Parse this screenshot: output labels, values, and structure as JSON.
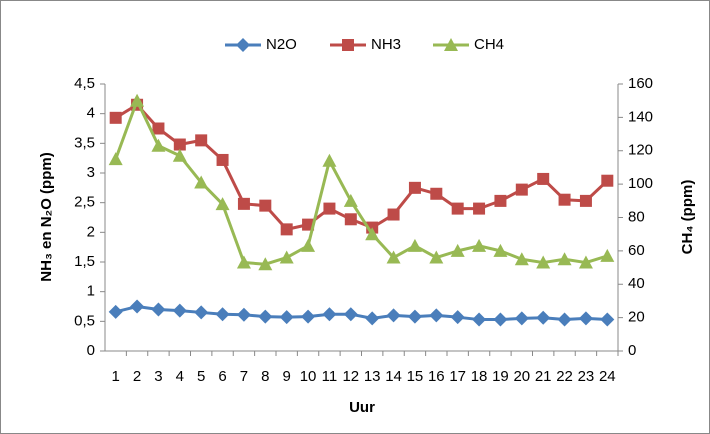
{
  "chart_data": {
    "type": "line",
    "x_label": "Uur",
    "y_label": "NH₃ en N₂O (ppm)",
    "y2_label": "CH₄ (ppm)",
    "categories": [
      "1",
      "2",
      "3",
      "4",
      "5",
      "6",
      "7",
      "8",
      "9",
      "10",
      "11",
      "12",
      "13",
      "14",
      "15",
      "16",
      "17",
      "18",
      "19",
      "20",
      "21",
      "22",
      "23",
      "24"
    ],
    "ylim": [
      0,
      4.5
    ],
    "yticks": [
      0,
      {
        "value": 0.5,
        "label": "0,5"
      },
      1,
      {
        "value": 1.5,
        "label": "1,5"
      },
      2,
      {
        "value": 2.5,
        "label": "2,5"
      },
      3,
      {
        "value": 3.5,
        "label": "3,5"
      },
      4,
      {
        "value": 4.5,
        "label": "4,5"
      }
    ],
    "y2lim": [
      0,
      160
    ],
    "y2ticks": [
      0,
      20,
      40,
      60,
      80,
      100,
      120,
      140,
      160
    ],
    "grid": false,
    "legend": "top",
    "series": [
      {
        "name": "N2O",
        "color": "#4a7ebb",
        "marker": "diamond",
        "values": [
          0.66,
          0.75,
          0.7,
          0.68,
          0.65,
          0.62,
          0.61,
          0.58,
          0.57,
          0.58,
          0.62,
          0.62,
          0.55,
          0.6,
          0.58,
          0.6,
          0.57,
          0.53,
          0.53,
          0.55,
          0.56,
          0.53,
          0.55,
          0.53
        ]
      },
      {
        "name": "NH3",
        "color": "#be4b48",
        "marker": "square",
        "values": [
          3.93,
          4.15,
          3.75,
          3.48,
          3.55,
          3.22,
          2.48,
          2.45,
          2.05,
          2.13,
          2.4,
          2.22,
          2.08,
          2.3,
          2.75,
          2.65,
          2.4,
          2.4,
          2.53,
          2.72,
          2.9,
          2.55,
          2.53,
          2.87
        ]
      },
      {
        "name": "CH4",
        "color": "#98b954",
        "marker": "triangle",
        "axis": "y2",
        "values": [
          115,
          150,
          123,
          117,
          101,
          88,
          53,
          52,
          56,
          63,
          114,
          90,
          70,
          56,
          63,
          56,
          60,
          63,
          60,
          55,
          53,
          55,
          53,
          57
        ]
      }
    ]
  }
}
